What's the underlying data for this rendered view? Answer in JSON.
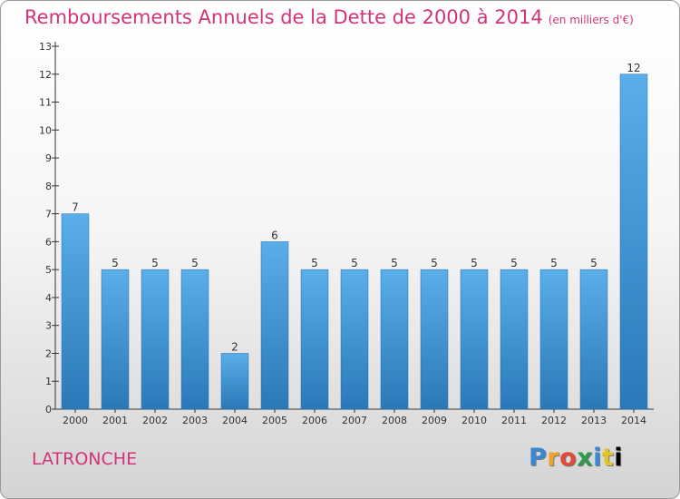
{
  "title": "Remboursements Annuels de la Dette de 2000 à 2014",
  "title_unit": "(en milliers d'€)",
  "commune": "LATRONCHE",
  "logo_text": "Proxiti",
  "colors": {
    "title": "#d2347a",
    "bar_top": "#5aaeea",
    "bar_bottom": "#2a78b8"
  },
  "chart_data": {
    "type": "bar",
    "categories": [
      "2000",
      "2001",
      "2002",
      "2003",
      "2004",
      "2005",
      "2006",
      "2007",
      "2008",
      "2009",
      "2010",
      "2011",
      "2012",
      "2013",
      "2014"
    ],
    "values": [
      7,
      5,
      5,
      5,
      2,
      6,
      5,
      5,
      5,
      5,
      5,
      5,
      5,
      5,
      12
    ],
    "ylim": [
      0,
      13
    ],
    "yticks": [
      0,
      1,
      2,
      3,
      4,
      5,
      6,
      7,
      8,
      9,
      10,
      11,
      12,
      13
    ],
    "grid": false
  }
}
